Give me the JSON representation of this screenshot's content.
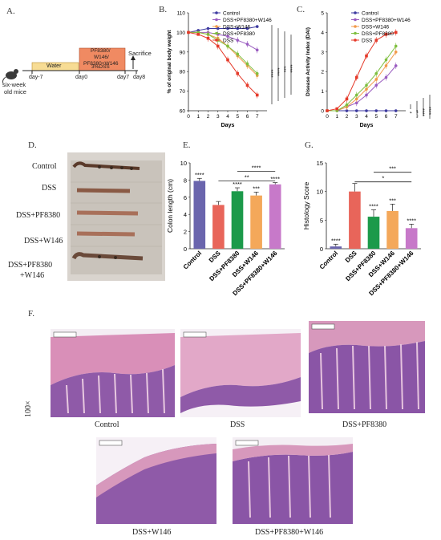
{
  "panels": {
    "a": "A.",
    "b": "B.",
    "c": "C.",
    "d": "D.",
    "e": "E.",
    "f": "F.",
    "g": "G."
  },
  "timeline": {
    "mouse_label_1": "six-week",
    "mouse_label_2": "old mice",
    "water": "Water",
    "treat_line1": "PF8380/",
    "treat_line2": "W146/",
    "treat_line3": "PF8380+W146",
    "dss": "3%DSS",
    "sacrifice": "Sacrifice",
    "day_labels": [
      "day-7",
      "day0",
      "day7",
      "day8"
    ]
  },
  "legend_labels": [
    "Control",
    "DSS+PF8380+W146",
    "DSS+W146",
    "DSS+PF8380",
    "DSS"
  ],
  "photo": {
    "labels": [
      "Control",
      "DSS",
      "DSS+PF8380",
      "DSS+W146",
      "DSS+PF8380",
      "+W146"
    ]
  },
  "histology": {
    "magnification": "100×",
    "captions": [
      "Control",
      "DSS",
      "DSS+PF8380",
      "DSS+W146",
      "DSS+PF8380+W146"
    ]
  },
  "colors": {
    "control": "#3d3aa0",
    "combo": "#9a5cc0",
    "w146": "#f29a4a",
    "pf8380": "#7fbf3f",
    "dss": "#e53a2a",
    "bar_control": "#6a65ad",
    "bar_dss": "#e8655a",
    "bar_pf": "#1c9a4a",
    "bar_w146": "#f4a85a",
    "bar_combo": "#c779c9"
  },
  "chart_data": [
    {
      "type": "line",
      "ylabel": "% of original body weight",
      "xlabel": "Days",
      "x": [
        0,
        1,
        2,
        3,
        4,
        5,
        6,
        7
      ],
      "xlim": [
        0,
        8
      ],
      "ylim": [
        60,
        110
      ],
      "yticks": [
        60,
        70,
        80,
        90,
        100,
        110
      ],
      "series": [
        {
          "name": "Control",
          "values": [
            100,
            101,
            102,
            102,
            102,
            102,
            102,
            103
          ]
        },
        {
          "name": "DSS+PF8380+W146",
          "values": [
            100,
            100,
            100,
            99,
            98,
            96,
            94,
            91
          ]
        },
        {
          "name": "DSS+W146",
          "values": [
            100,
            100,
            99,
            97,
            93,
            88,
            83,
            78
          ]
        },
        {
          "name": "DSS+PF8380",
          "values": [
            100,
            100,
            99,
            96,
            93,
            89,
            84,
            79
          ]
        },
        {
          "name": "DSS",
          "values": [
            100,
            99,
            97,
            93,
            86,
            79,
            73,
            68
          ]
        }
      ],
      "significance": [
        "****",
        "****",
        "***",
        "****"
      ]
    },
    {
      "type": "line",
      "ylabel": "Disease Activity Index (DAI)",
      "xlabel": "Days",
      "x": [
        0,
        1,
        2,
        3,
        4,
        5,
        6,
        7
      ],
      "xlim": [
        0,
        8
      ],
      "ylim": [
        0,
        5
      ],
      "yticks": [
        0,
        1,
        2,
        3,
        4,
        5
      ],
      "series": [
        {
          "name": "Control",
          "values": [
            0,
            0,
            0,
            0,
            0,
            0,
            0,
            0
          ]
        },
        {
          "name": "DSS+PF8380+W146",
          "values": [
            0,
            0,
            0.2,
            0.4,
            0.8,
            1.3,
            1.7,
            2.3
          ]
        },
        {
          "name": "DSS+W146",
          "values": [
            0,
            0,
            0.2,
            0.6,
            1.1,
            1.6,
            2.3,
            3.0
          ]
        },
        {
          "name": "DSS+PF8380",
          "values": [
            0,
            0,
            0.3,
            0.8,
            1.3,
            1.9,
            2.6,
            3.3
          ]
        },
        {
          "name": "DSS",
          "values": [
            0,
            0.1,
            0.6,
            1.7,
            2.8,
            3.6,
            3.9,
            4.0
          ]
        }
      ],
      "significance": [
        "*",
        "****",
        "****",
        "****"
      ]
    },
    {
      "type": "bar",
      "ylabel": "Colon length (cm)",
      "categories": [
        "Control",
        "DSS",
        "DSS+PF8380",
        "DSS+W146",
        "DSS+PF8380+W146"
      ],
      "values": [
        7.9,
        5.1,
        6.7,
        6.2,
        7.5
      ],
      "errors": [
        0.3,
        0.4,
        0.4,
        0.4,
        0.2
      ],
      "stars": [
        "****",
        "",
        "****",
        "***",
        "****"
      ],
      "ylim": [
        0,
        10
      ],
      "yticks": [
        0,
        2,
        4,
        6,
        8,
        10
      ],
      "brackets": [
        "****",
        "**"
      ]
    },
    {
      "type": "bar",
      "ylabel": "Histology Score",
      "categories": [
        "Control",
        "DSS",
        "DSS+PF8380",
        "DSS+W146",
        "DSS+PF8380+W146"
      ],
      "values": [
        0.4,
        10.0,
        5.6,
        6.6,
        3.6
      ],
      "errors": [
        0.4,
        1.4,
        1.2,
        1.2,
        0.7
      ],
      "stars": [
        "****",
        "",
        "****",
        "***",
        "****"
      ],
      "ylim": [
        0,
        15
      ],
      "yticks": [
        0,
        5,
        10,
        15
      ],
      "brackets": [
        "***",
        "*"
      ]
    }
  ]
}
